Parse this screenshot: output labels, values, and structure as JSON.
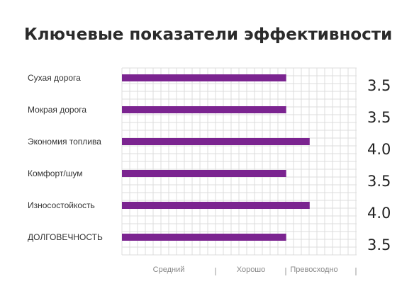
{
  "chart_data": {
    "type": "bar",
    "orientation": "horizontal",
    "title": "Ключевые показатели эффективности",
    "categories": [
      "Сухая дорога",
      "Мокрая дорога",
      "Экономия топлива",
      "Комфорт/шум",
      "Износостойкость",
      "ДОЛГОВЕЧНОСТЬ"
    ],
    "values": [
      3.5,
      3.5,
      4.0,
      3.5,
      4.0,
      3.5
    ],
    "value_labels": [
      "3.5",
      "3.5",
      "4.0",
      "3.5",
      "4.0",
      "3.5"
    ],
    "xlim": [
      0,
      5
    ],
    "scale_labels": [
      "Средний",
      "Хорошо",
      "Превосходно"
    ],
    "grid": true,
    "bar_color": "#7b2490",
    "grid_color": "#dcdcdc"
  }
}
